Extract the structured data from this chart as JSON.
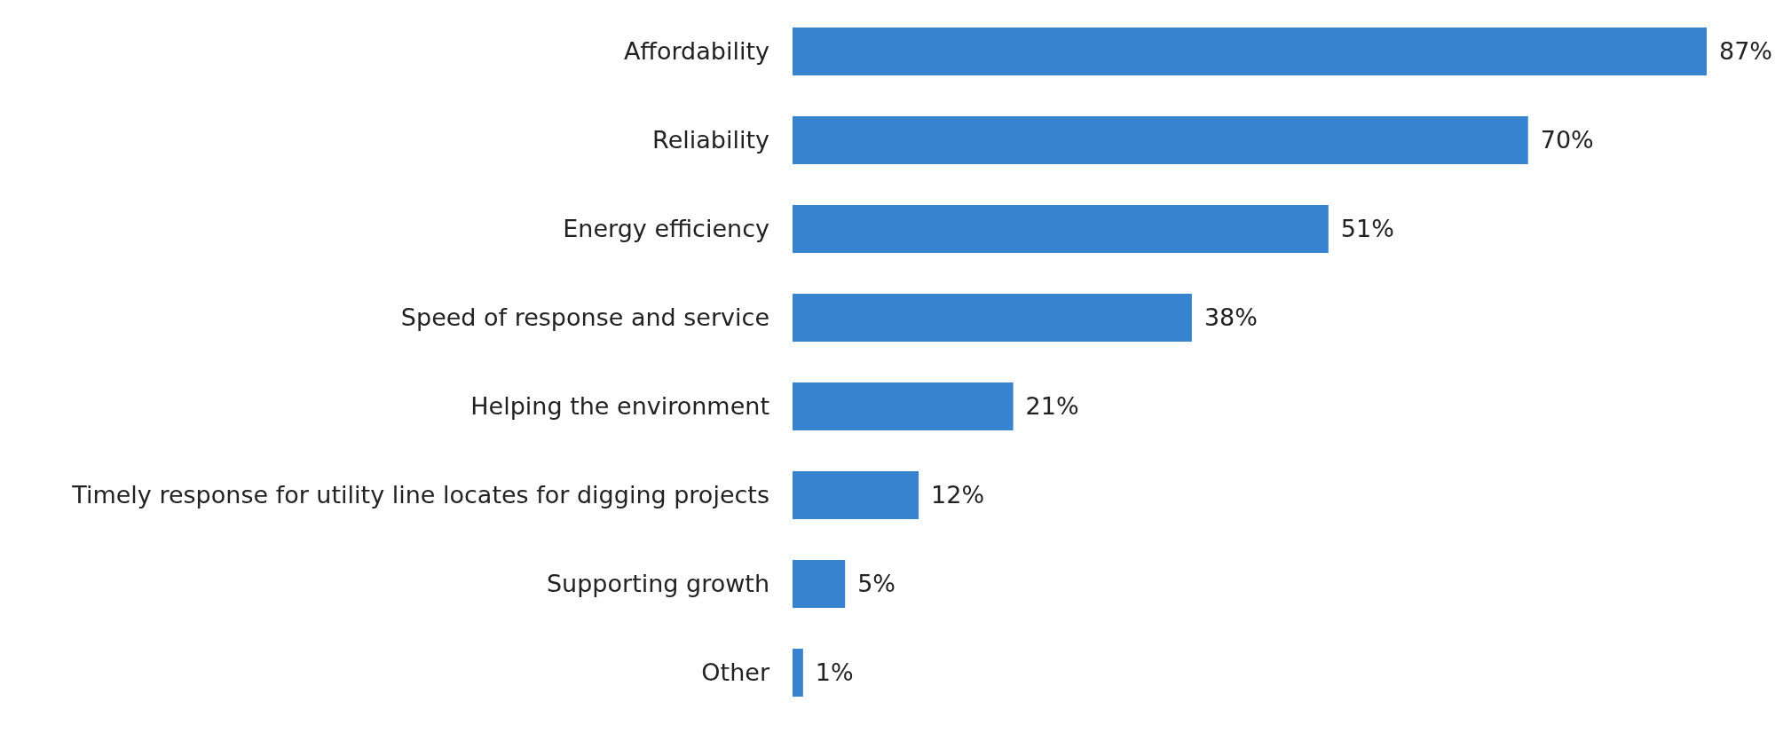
{
  "chart_data": {
    "type": "bar",
    "orientation": "horizontal",
    "categories": [
      "Affordability",
      "Reliability",
      "Energy efficiency",
      "Speed of response and service",
      "Helping the environment",
      "Timely response for utility line locates for digging projects",
      "Supporting growth",
      "Other"
    ],
    "values": [
      87,
      70,
      51,
      38,
      21,
      12,
      5,
      1
    ],
    "value_labels": [
      "87%",
      "70%",
      "51%",
      "38%",
      "21%",
      "12%",
      "5%",
      "1%"
    ],
    "color": "#3783d0"
  }
}
